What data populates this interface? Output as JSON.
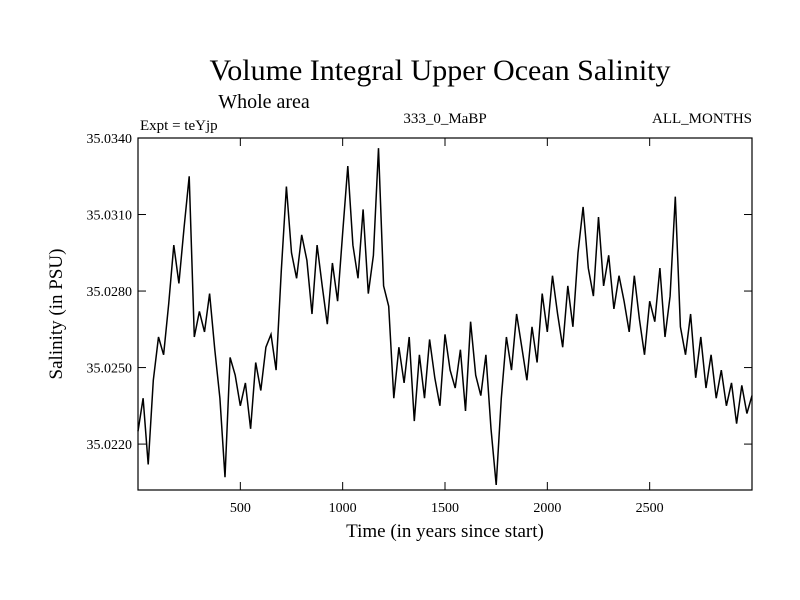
{
  "chart_data": {
    "type": "line",
    "title": "Volume Integral Upper Ocean Salinity",
    "subtitle": "Whole area",
    "expt_label": "Expt = teYjp",
    "run_label": "333_0_MaBP",
    "months_label": "ALL_MONTHS",
    "xlabel": "Time (in years since start)",
    "ylabel": "Salinity (in PSU)",
    "xlim": [
      0,
      3000
    ],
    "ylim": [
      35.0202,
      35.034
    ],
    "x_ticks": [
      500,
      1000,
      1500,
      2000,
      2500
    ],
    "x_tick_labels": [
      "500",
      "1000",
      "1500",
      "2000",
      "2500"
    ],
    "y_ticks": [
      35.022,
      35.025,
      35.028,
      35.031,
      35.034
    ],
    "y_tick_labels": [
      "35.0220",
      "35.0250",
      "35.0280",
      "35.0310",
      "35.0340"
    ],
    "series": [
      {
        "name": "Salinity",
        "x": [
          0,
          25,
          50,
          75,
          100,
          125,
          150,
          175,
          200,
          225,
          250,
          275,
          300,
          325,
          350,
          375,
          400,
          425,
          450,
          475,
          500,
          525,
          550,
          575,
          600,
          625,
          650,
          675,
          700,
          725,
          750,
          775,
          800,
          825,
          850,
          875,
          900,
          925,
          950,
          975,
          1000,
          1025,
          1050,
          1075,
          1100,
          1125,
          1150,
          1175,
          1200,
          1225,
          1250,
          1275,
          1300,
          1325,
          1350,
          1375,
          1400,
          1425,
          1450,
          1475,
          1500,
          1525,
          1550,
          1575,
          1600,
          1625,
          1650,
          1675,
          1700,
          1725,
          1750,
          1775,
          1800,
          1825,
          1850,
          1875,
          1900,
          1925,
          1950,
          1975,
          2000,
          2025,
          2050,
          2075,
          2100,
          2125,
          2150,
          2175,
          2200,
          2225,
          2250,
          2275,
          2300,
          2325,
          2350,
          2375,
          2400,
          2425,
          2450,
          2475,
          2500,
          2525,
          2550,
          2575,
          2600,
          2625,
          2650,
          2675,
          2700,
          2725,
          2750,
          2775,
          2800,
          2825,
          2850,
          2875,
          2900,
          2925,
          2950,
          2975,
          3000
        ],
        "values": [
          35.0225,
          35.0238,
          35.0212,
          35.0245,
          35.0262,
          35.0255,
          35.0275,
          35.0298,
          35.0283,
          35.0305,
          35.0325,
          35.0262,
          35.0272,
          35.0264,
          35.0279,
          35.0257,
          35.0238,
          35.0207,
          35.0254,
          35.0247,
          35.0235,
          35.0244,
          35.0226,
          35.0252,
          35.0241,
          35.0258,
          35.0263,
          35.0249,
          35.0288,
          35.0321,
          35.0295,
          35.0285,
          35.0302,
          35.0292,
          35.0271,
          35.0298,
          35.0282,
          35.0267,
          35.0291,
          35.0276,
          35.0303,
          35.0329,
          35.0298,
          35.0285,
          35.0312,
          35.0279,
          35.0294,
          35.0336,
          35.0282,
          35.0274,
          35.0238,
          35.0258,
          35.0244,
          35.0262,
          35.0229,
          35.0255,
          35.0238,
          35.0261,
          35.0246,
          35.0235,
          35.0263,
          35.0249,
          35.0242,
          35.0257,
          35.0233,
          35.0268,
          35.0247,
          35.0239,
          35.0255,
          35.0226,
          35.0204,
          35.0238,
          35.0262,
          35.0249,
          35.0271,
          35.0258,
          35.0245,
          35.0266,
          35.0252,
          35.0279,
          35.0264,
          35.0286,
          35.0271,
          35.0258,
          35.0282,
          35.0266,
          35.0295,
          35.0313,
          35.0289,
          35.0278,
          35.0309,
          35.0282,
          35.0294,
          35.0273,
          35.0286,
          35.0276,
          35.0264,
          35.0286,
          35.0269,
          35.0255,
          35.0276,
          35.0268,
          35.0289,
          35.0262,
          35.0278,
          35.0317,
          35.0266,
          35.0255,
          35.0271,
          35.0246,
          35.0262,
          35.0242,
          35.0255,
          35.0238,
          35.0249,
          35.0235,
          35.0244,
          35.0228,
          35.0243,
          35.0232,
          35.0239
        ]
      }
    ]
  }
}
